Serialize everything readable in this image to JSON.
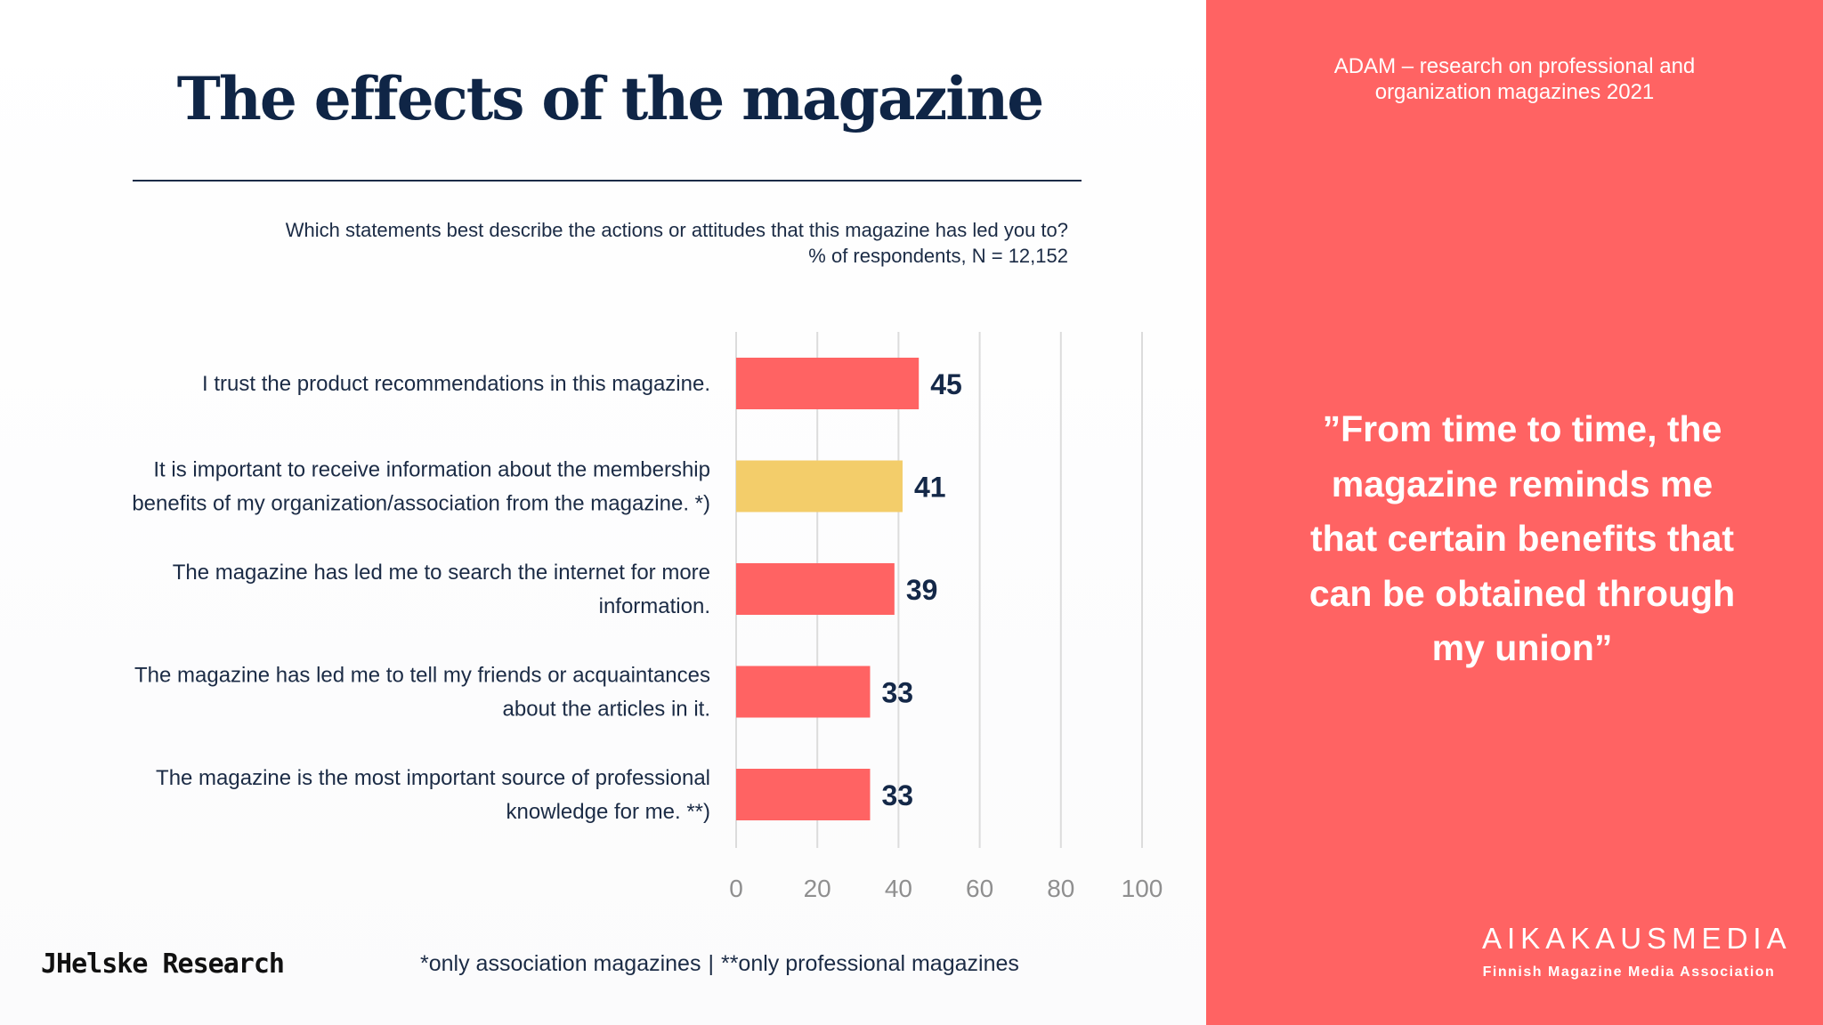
{
  "header": {
    "title": "The effects of the magazine",
    "question_line1": "Which statements best describe the actions or attitudes that this magazine has led you to?",
    "question_line2": "% of respondents, N = 12,152"
  },
  "chart_data": {
    "type": "bar",
    "orientation": "horizontal",
    "categories": [
      [
        "I trust the product recommendations in this magazine."
      ],
      [
        "It is important to receive information about the membership",
        "benefits of my organization/association from the magazine. *)"
      ],
      [
        "The magazine has led me to search the internet for more",
        "information."
      ],
      [
        "The magazine has led me to tell my friends or acquaintances",
        "about the articles in it."
      ],
      [
        "The magazine is the most important source of professional",
        "knowledge for me. **)"
      ]
    ],
    "values": [
      45,
      41,
      39,
      33,
      33
    ],
    "bar_colors": [
      "#ff6363",
      "#f3cd6a",
      "#ff6363",
      "#ff6363",
      "#ff6363"
    ],
    "xlim": [
      0,
      100
    ],
    "xticks": [
      0,
      20,
      40,
      60,
      80,
      100
    ],
    "grid": true,
    "data_labels": true
  },
  "footer": {
    "logo_text": "JHelske Research",
    "footnote_left": "*only association magazines",
    "footnote_sep": "|",
    "footnote_right": "**only professional magazines"
  },
  "sidebar": {
    "research_line1": "ADAM – research on professional and",
    "research_line2": "organization magazines 2021",
    "quote_lines": [
      "”From time to time, the",
      "magazine reminds me",
      "that certain benefits that",
      "can be obtained through",
      "my union”"
    ],
    "brand_name": "AIKAKAUSMEDIA",
    "brand_subtitle": "Finnish Magazine Media Association"
  },
  "colors": {
    "accent_coral": "#ff6363",
    "highlight_yellow": "#f3cd6a",
    "navy_text": "#142848"
  }
}
